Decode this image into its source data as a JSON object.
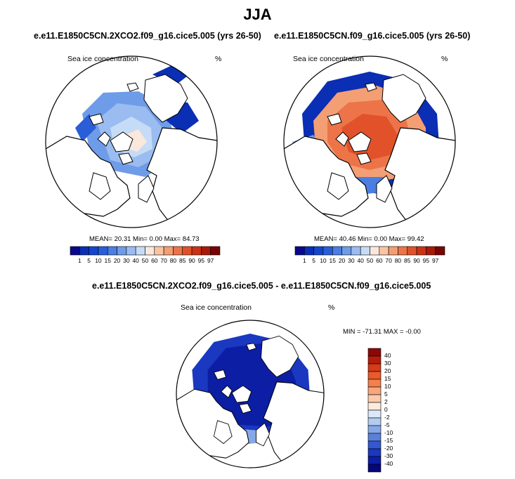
{
  "main_title": "JJA",
  "panels": [
    {
      "case_title": "e.e11.E1850C5CN.2XCO2.f09_g16.cice5.005 (yrs 26-50)",
      "field_label": "Sea ice concentration",
      "unit_label": "%",
      "stats": "MEAN=  20.31  Min=   0.00  Max=  84.73"
    },
    {
      "case_title": "e.e11.E1850C5CN.f09_g16.cice5.005 (yrs 26-50)",
      "field_label": "Sea ice concentration",
      "unit_label": "%",
      "stats": "MEAN=  40.46  Min=   0.00  Max=  99.42"
    }
  ],
  "diff_panel": {
    "case_title": "e.e11.E1850C5CN.2XCO2.f09_g16.cice5.005 - e.e11.E1850C5CN.f09_g16.cice5.005",
    "field_label": "Sea ice concentration",
    "unit_label": "%",
    "stats": "MIN = -71.31 MAX =  -0.00"
  },
  "abs_colorbar": {
    "labels": [
      "1",
      "5",
      "10",
      "15",
      "20",
      "30",
      "40",
      "50",
      "60",
      "70",
      "80",
      "85",
      "90",
      "95",
      "97"
    ],
    "colors": [
      "#08088c",
      "#0a2eb4",
      "#1246cc",
      "#2a5ed8",
      "#4a7ee2",
      "#6e9ce8",
      "#9abcf0",
      "#c6dcf6",
      "#fbe8dc",
      "#f8c4a4",
      "#f49e74",
      "#ec7448",
      "#e2522a",
      "#cc3214",
      "#a81a08",
      "#780404"
    ]
  },
  "diff_colorbar": {
    "labels": [
      "40",
      "30",
      "20",
      "15",
      "10",
      "5",
      "2",
      "0",
      "-2",
      "-5",
      "-10",
      "-15",
      "-20",
      "-30",
      "-40"
    ],
    "colors": [
      "#8c0808",
      "#b41c0c",
      "#d63a18",
      "#ea5a2a",
      "#f4804c",
      "#f8a67c",
      "#fbcaac",
      "#fdeadc",
      "#dce8f8",
      "#b2ccf0",
      "#86a8e6",
      "#5a80dc",
      "#3458d0",
      "#1a38c0",
      "#0c1ea4",
      "#06067c"
    ]
  },
  "chart_data": {
    "type": "heatmap",
    "title": "JJA",
    "variable": "Sea ice concentration",
    "units": "%",
    "maps": [
      {
        "case": "e.e11.E1850C5CN.2XCO2.f09_g16.cice5.005 (yrs 26-50)",
        "mean": 20.31,
        "min": 0.0,
        "max": 84.73
      },
      {
        "case": "e.e11.E1850C5CN.f09_g16.cice5.005 (yrs 26-50)",
        "mean": 40.46,
        "min": 0.0,
        "max": 99.42
      },
      {
        "case": "e.e11.E1850C5CN.2XCO2.f09_g16.cice5.005 - e.e11.E1850C5CN.f09_g16.cice5.005",
        "min": -71.31,
        "max": -0.0
      }
    ],
    "abs_levels": [
      1,
      5,
      10,
      15,
      20,
      30,
      40,
      50,
      60,
      70,
      80,
      85,
      90,
      95,
      97
    ],
    "diff_levels": [
      40,
      30,
      20,
      15,
      10,
      5,
      2,
      0,
      -2,
      -5,
      -10,
      -15,
      -20,
      -30,
      -40
    ]
  }
}
